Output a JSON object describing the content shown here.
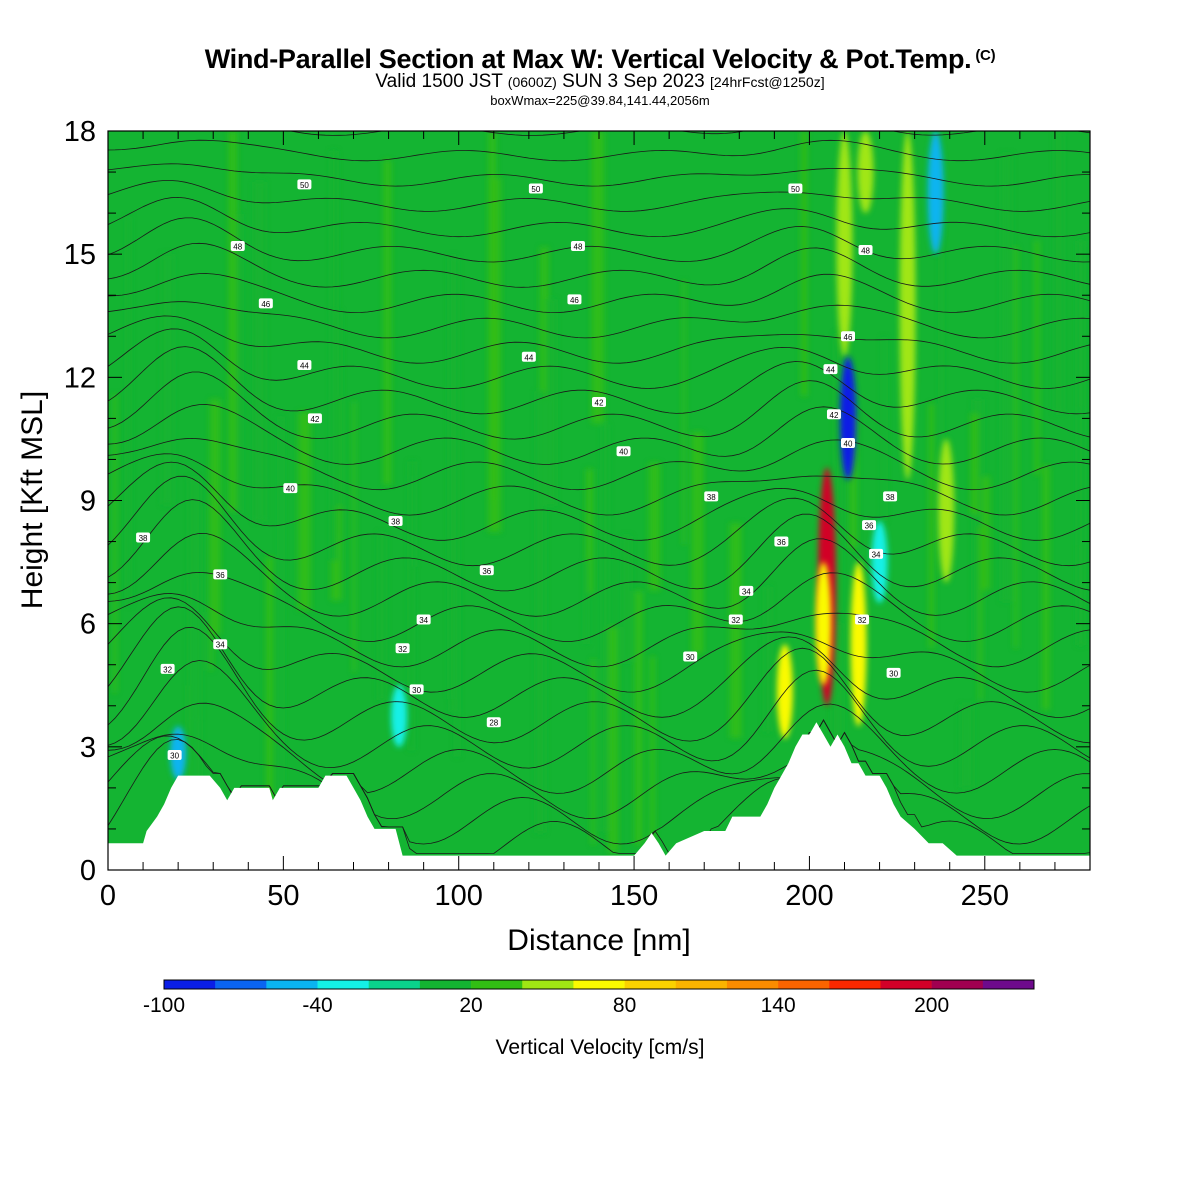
{
  "header": {
    "title": "Wind-Parallel Section at Max W: Vertical Velocity & Pot.Temp.",
    "title_mark": "(C)",
    "valid_prefix": "Valid 1500 JST",
    "valid_utc": "(0600Z)",
    "valid_date": "SUN 3 Sep 2023",
    "valid_fcst": "[24hrFcst@1250z]",
    "box_info": "boxWmax=225@39.84,141.44,2056m"
  },
  "chart_data": {
    "type": "heatmap",
    "title": "Wind-Parallel Section at Max W: Vertical Velocity & Pot.Temp.",
    "xlabel": "Distance [nm]",
    "ylabel": "Height [Kft MSL]",
    "xlim": [
      0,
      280
    ],
    "ylim": [
      0,
      18
    ],
    "x_ticks": [
      0,
      50,
      100,
      150,
      200,
      250
    ],
    "y_ticks": [
      0,
      3,
      6,
      9,
      12,
      15,
      18
    ],
    "colorbar": {
      "label": "Vertical Velocity [cm/s]",
      "tick_labels": [
        "-100",
        "-40",
        "20",
        "80",
        "140",
        "200"
      ],
      "tick_values": [
        -100,
        -40,
        20,
        80,
        140,
        200
      ],
      "bounds": [
        -100,
        -80,
        -60,
        -40,
        -20,
        0,
        20,
        40,
        60,
        80,
        100,
        120,
        140,
        160,
        180,
        200,
        220,
        240
      ],
      "colors": [
        "#0a1ee6",
        "#0a64f0",
        "#0ab4f0",
        "#14f0e6",
        "#0ad28c",
        "#14b432",
        "#32be14",
        "#a0e614",
        "#fafa00",
        "#fad200",
        "#fab400",
        "#fa8c00",
        "#fa6400",
        "#fa2800",
        "#d20028",
        "#a00050",
        "#6e0a8c"
      ]
    },
    "background_w": 10,
    "updrafts": [
      {
        "x": 205,
        "y0": 4.0,
        "y1": 9.8,
        "w": 190
      },
      {
        "x": 204,
        "y0": 4.5,
        "y1": 7.5,
        "w": 70
      },
      {
        "x": 193,
        "y0": 3.2,
        "y1": 5.5,
        "w": 70
      },
      {
        "x": 214,
        "y0": 3.5,
        "y1": 7.5,
        "w": 60
      },
      {
        "x": 228,
        "y0": 9.5,
        "y1": 18,
        "w": 50
      },
      {
        "x": 210,
        "y0": 12.5,
        "y1": 18,
        "w": 45
      },
      {
        "x": 216,
        "y0": 16,
        "y1": 18,
        "w": 50
      },
      {
        "x": 239,
        "y0": 7.0,
        "y1": 10.5,
        "w": 50
      }
    ],
    "downdrafts": [
      {
        "x": 211,
        "y0": 9.5,
        "y1": 12.5,
        "w": -95
      },
      {
        "x": 236,
        "y0": 15,
        "y1": 18,
        "w": -55
      },
      {
        "x": 20,
        "y0": 2.2,
        "y1": 3.5,
        "w": -60
      },
      {
        "x": 83,
        "y0": 3.0,
        "y1": 4.5,
        "w": -40
      },
      {
        "x": 220,
        "y0": 6.5,
        "y1": 8.5,
        "w": -30
      }
    ],
    "theta_contours": [
      {
        "label": "30",
        "x": 19,
        "y": 2.8
      },
      {
        "label": "32",
        "x": 17,
        "y": 4.9
      },
      {
        "label": "34",
        "x": 32,
        "y": 5.5
      },
      {
        "label": "36",
        "x": 32,
        "y": 7.2
      },
      {
        "label": "38",
        "x": 10,
        "y": 8.1
      },
      {
        "label": "40",
        "x": 52,
        "y": 9.3
      },
      {
        "label": "42",
        "x": 59,
        "y": 11.0
      },
      {
        "label": "44",
        "x": 56,
        "y": 12.3
      },
      {
        "label": "46",
        "x": 45,
        "y": 13.8
      },
      {
        "label": "48",
        "x": 37,
        "y": 15.2
      },
      {
        "label": "50",
        "x": 56,
        "y": 16.7
      },
      {
        "label": "38",
        "x": 82,
        "y": 8.5
      },
      {
        "label": "34",
        "x": 90,
        "y": 6.1
      },
      {
        "label": "32",
        "x": 84,
        "y": 5.4
      },
      {
        "label": "30",
        "x": 88,
        "y": 4.4
      },
      {
        "label": "28",
        "x": 110,
        "y": 3.6
      },
      {
        "label": "36",
        "x": 108,
        "y": 7.3
      },
      {
        "label": "40",
        "x": 147,
        "y": 10.2
      },
      {
        "label": "42",
        "x": 140,
        "y": 11.4
      },
      {
        "label": "44",
        "x": 120,
        "y": 12.5
      },
      {
        "label": "46",
        "x": 133,
        "y": 13.9
      },
      {
        "label": "48",
        "x": 134,
        "y": 15.2
      },
      {
        "label": "50",
        "x": 122,
        "y": 16.6
      },
      {
        "label": "38",
        "x": 172,
        "y": 9.1
      },
      {
        "label": "36",
        "x": 192,
        "y": 8.0
      },
      {
        "label": "34",
        "x": 182,
        "y": 6.8
      },
      {
        "label": "32",
        "x": 179,
        "y": 6.1
      },
      {
        "label": "30",
        "x": 166,
        "y": 5.2
      },
      {
        "label": "50",
        "x": 196,
        "y": 16.6
      },
      {
        "label": "48",
        "x": 216,
        "y": 15.1
      },
      {
        "label": "46",
        "x": 211,
        "y": 13.0
      },
      {
        "label": "44",
        "x": 206,
        "y": 12.2
      },
      {
        "label": "42",
        "x": 207,
        "y": 11.1
      },
      {
        "label": "40",
        "x": 211,
        "y": 10.4
      },
      {
        "label": "38",
        "x": 223,
        "y": 9.1
      },
      {
        "label": "36",
        "x": 217,
        "y": 8.4
      },
      {
        "label": "34",
        "x": 219,
        "y": 7.7
      },
      {
        "label": "32",
        "x": 215,
        "y": 6.1
      },
      {
        "label": "30",
        "x": 224,
        "y": 4.8
      }
    ],
    "terrain": [
      [
        0,
        0.65
      ],
      [
        10,
        0.65
      ],
      [
        11,
        0.95
      ],
      [
        14,
        1.3
      ],
      [
        16,
        1.6
      ],
      [
        18,
        2.0
      ],
      [
        20,
        2.3
      ],
      [
        24,
        2.3
      ],
      [
        29,
        2.3
      ],
      [
        32,
        2.0
      ],
      [
        34,
        1.7
      ],
      [
        36,
        2.0
      ],
      [
        40,
        2.0
      ],
      [
        46,
        2.0
      ],
      [
        47,
        1.7
      ],
      [
        49,
        2.0
      ],
      [
        56,
        2.0
      ],
      [
        60,
        2.0
      ],
      [
        62,
        2.3
      ],
      [
        64,
        2.3
      ],
      [
        68,
        2.3
      ],
      [
        70,
        2.0
      ],
      [
        72,
        1.7
      ],
      [
        74,
        1.3
      ],
      [
        76,
        1.0
      ],
      [
        82,
        1.0
      ],
      [
        84,
        0.35
      ],
      [
        96,
        0.35
      ],
      [
        110,
        0.35
      ],
      [
        130,
        0.35
      ],
      [
        150,
        0.35
      ],
      [
        153,
        0.65
      ],
      [
        155,
        0.9
      ],
      [
        157,
        0.65
      ],
      [
        159,
        0.35
      ],
      [
        162,
        0.65
      ],
      [
        170,
        0.95
      ],
      [
        176,
        0.95
      ],
      [
        178,
        1.3
      ],
      [
        186,
        1.3
      ],
      [
        188,
        1.6
      ],
      [
        190,
        2.0
      ],
      [
        192,
        2.3
      ],
      [
        194,
        2.6
      ],
      [
        196,
        3.0
      ],
      [
        198,
        3.3
      ],
      [
        200,
        3.3
      ],
      [
        202,
        3.6
      ],
      [
        204,
        3.3
      ],
      [
        206,
        3.0
      ],
      [
        208,
        3.3
      ],
      [
        210,
        3.0
      ],
      [
        212,
        2.6
      ],
      [
        214,
        2.6
      ],
      [
        216,
        2.3
      ],
      [
        220,
        2.3
      ],
      [
        222,
        2.0
      ],
      [
        224,
        1.6
      ],
      [
        226,
        1.3
      ],
      [
        230,
        1.0
      ],
      [
        234,
        0.65
      ],
      [
        238,
        0.65
      ],
      [
        242,
        0.35
      ],
      [
        280,
        0.35
      ]
    ]
  }
}
